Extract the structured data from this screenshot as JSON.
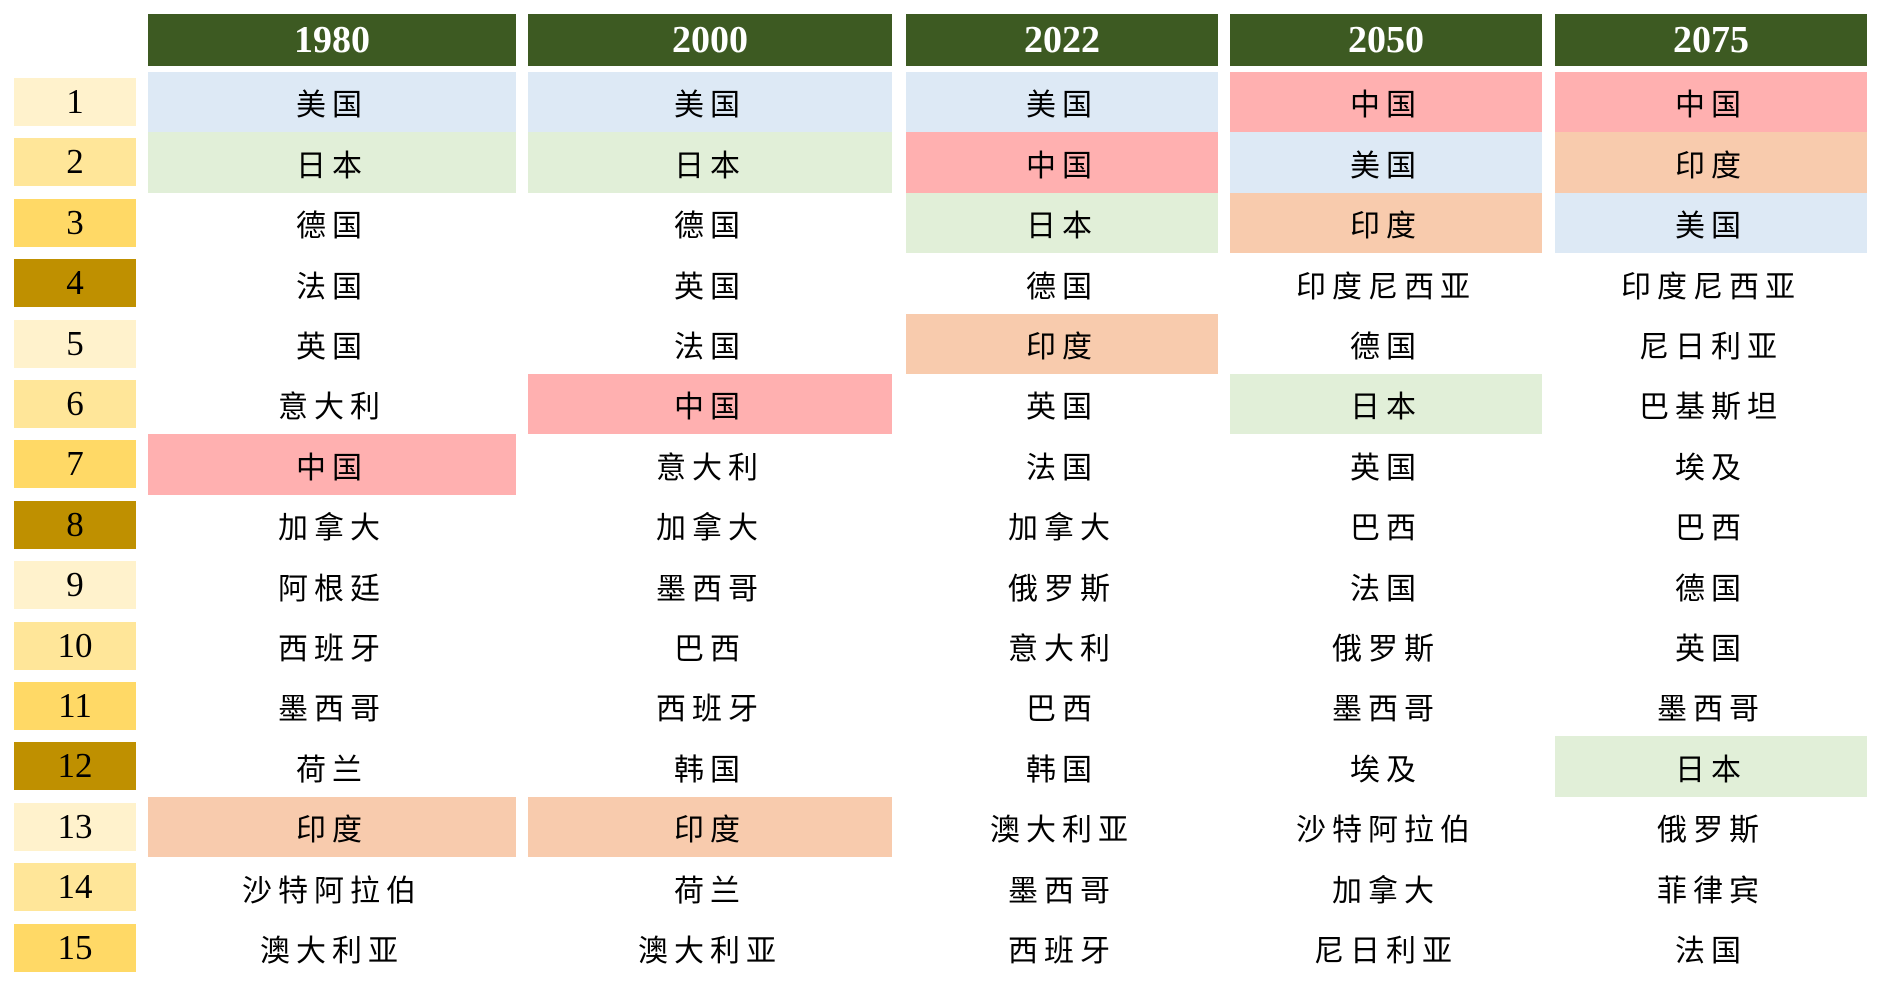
{
  "chart_data": {
    "type": "table",
    "columns": [
      "1980",
      "2000",
      "2022",
      "2050",
      "2075"
    ],
    "ranks": [
      "1",
      "2",
      "3",
      "4",
      "5",
      "6",
      "7",
      "8",
      "9",
      "10",
      "11",
      "12",
      "13",
      "14",
      "15"
    ],
    "rank_colors": [
      "#fff2cc",
      "#ffe699",
      "#ffd966",
      "#bf9000",
      "#fff2cc",
      "#ffe699",
      "#ffd966",
      "#bf9000",
      "#fff2cc",
      "#ffe699",
      "#ffd966",
      "#bf9000",
      "#fff2cc",
      "#ffe699",
      "#ffd966"
    ],
    "header_color": "#3d5a22",
    "highlight_colors": {
      "美国": "#dde9f5",
      "日本": "#e1efd8",
      "中国": "#ffb0b0",
      "印度": "#f8cbad"
    },
    "cells": [
      [
        "美国",
        "日本",
        "德国",
        "法国",
        "英国",
        "意大利",
        "中国",
        "加拿大",
        "阿根廷",
        "西班牙",
        "墨西哥",
        "荷兰",
        "印度",
        "沙特阿拉伯",
        "澳大利亚"
      ],
      [
        "美国",
        "日本",
        "德国",
        "英国",
        "法国",
        "中国",
        "意大利",
        "加拿大",
        "墨西哥",
        "巴西",
        "西班牙",
        "韩国",
        "印度",
        "荷兰",
        "澳大利亚"
      ],
      [
        "美国",
        "中国",
        "日本",
        "德国",
        "印度",
        "英国",
        "法国",
        "加拿大",
        "俄罗斯",
        "意大利",
        "巴西",
        "韩国",
        "澳大利亚",
        "墨西哥",
        "西班牙"
      ],
      [
        "中国",
        "美国",
        "印度",
        "印度尼西亚",
        "德国",
        "日本",
        "英国",
        "巴西",
        "法国",
        "俄罗斯",
        "墨西哥",
        "埃及",
        "沙特阿拉伯",
        "加拿大",
        "尼日利亚"
      ],
      [
        "中国",
        "印度",
        "美国",
        "印度尼西亚",
        "尼日利亚",
        "巴基斯坦",
        "埃及",
        "巴西",
        "德国",
        "英国",
        "墨西哥",
        "日本",
        "俄罗斯",
        "菲律宾",
        "法国"
      ]
    ]
  }
}
